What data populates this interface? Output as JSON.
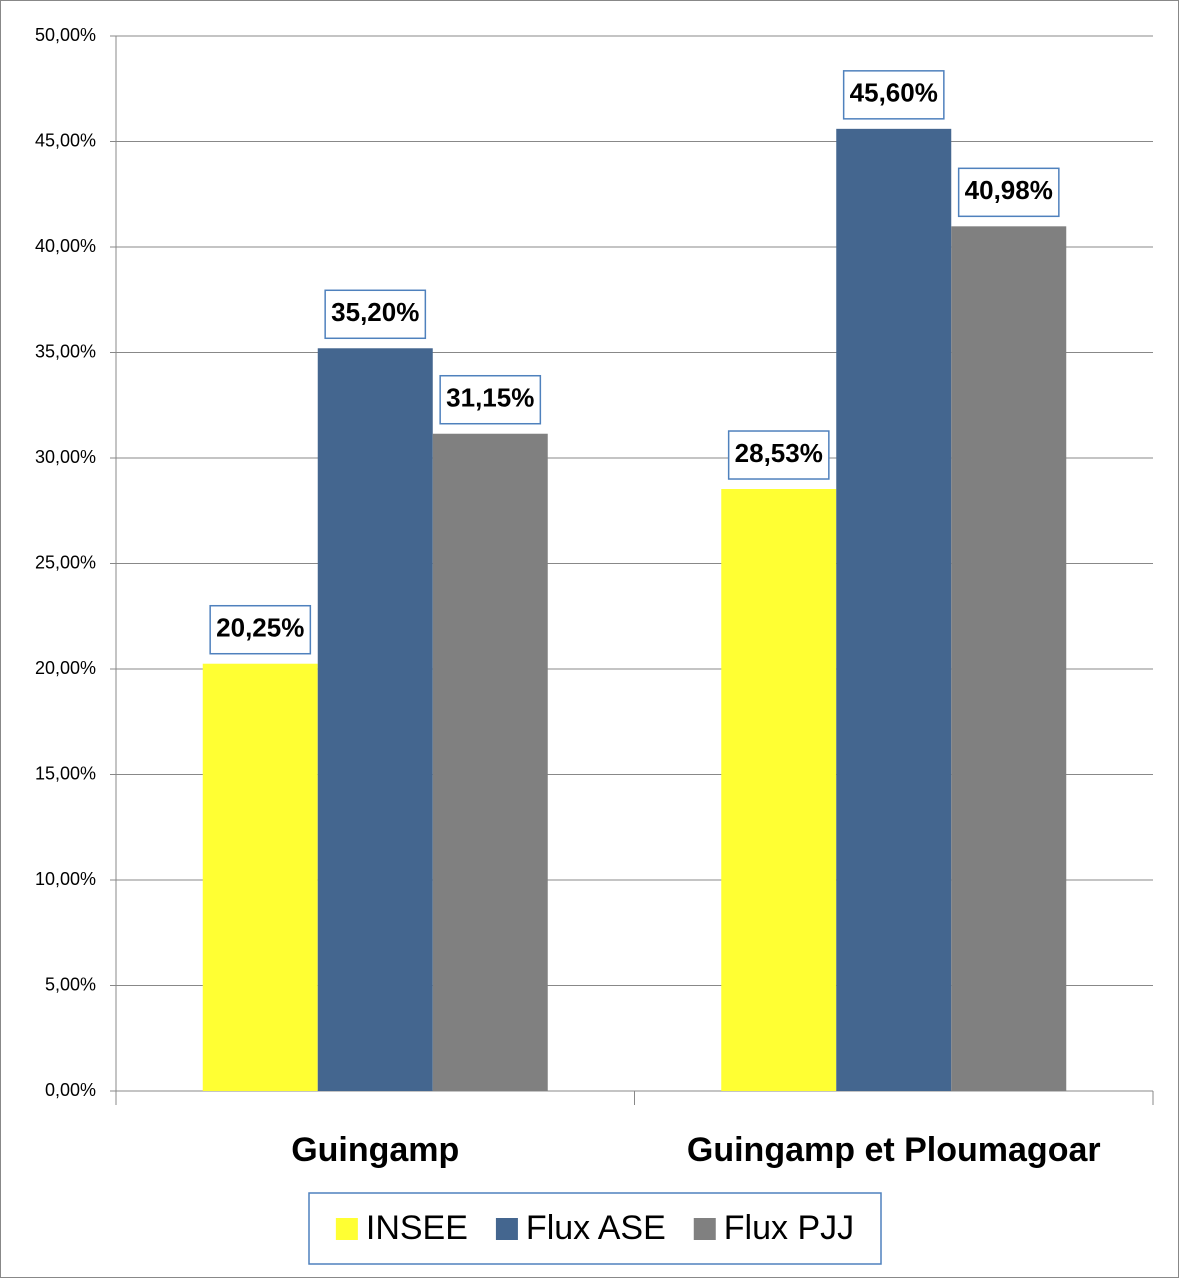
{
  "chart_data": {
    "type": "bar",
    "categories": [
      "Guingamp",
      "Guingamp et Ploumagoar"
    ],
    "series": [
      {
        "name": "INSEE",
        "color": "#ffff33",
        "values": [
          20.25,
          28.53
        ],
        "value_labels": [
          "20,25%",
          "28,53%"
        ]
      },
      {
        "name": "Flux ASE",
        "color": "#44668f",
        "values": [
          35.2,
          45.6
        ],
        "value_labels": [
          "35,20%",
          "45,60%"
        ]
      },
      {
        "name": "Flux PJJ",
        "color": "#808080",
        "values": [
          31.15,
          40.98
        ],
        "value_labels": [
          "31,15%",
          "40,98%"
        ]
      }
    ],
    "ylim": [
      0,
      50
    ],
    "yticks": [
      {
        "value": 0,
        "label": "0,00%"
      },
      {
        "value": 5,
        "label": "5,00%"
      },
      {
        "value": 10,
        "label": "10,00%"
      },
      {
        "value": 15,
        "label": "15,00%"
      },
      {
        "value": 20,
        "label": "20,00%"
      },
      {
        "value": 25,
        "label": "25,00%"
      },
      {
        "value": 30,
        "label": "30,00%"
      },
      {
        "value": 35,
        "label": "35,00%"
      },
      {
        "value": 40,
        "label": "40,00%"
      },
      {
        "value": 45,
        "label": "45,00%"
      },
      {
        "value": 50,
        "label": "50,00%"
      }
    ],
    "grid": true,
    "legend": "bottom"
  }
}
